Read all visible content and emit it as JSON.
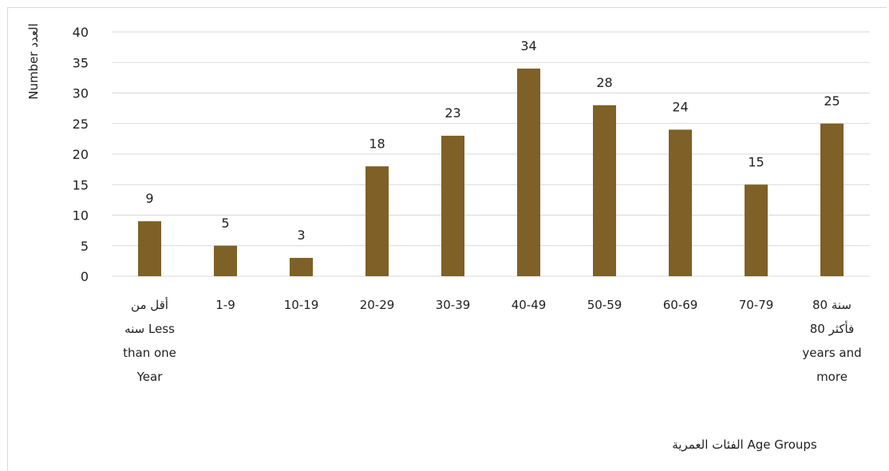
{
  "chart_data": {
    "type": "bar",
    "title": "",
    "ylabel": "Number العدد",
    "xlabel": "الفئات العمرية Age Groups",
    "ylim": [
      0,
      40
    ],
    "yticks": [
      0,
      5,
      10,
      15,
      20,
      25,
      30,
      35,
      40
    ],
    "grid": true,
    "legend": "none",
    "bar_color": "#7f6026",
    "gridline_color": "#d9d9d9",
    "categories": [
      [
        "أقل من",
        "سنه Less",
        "than one",
        "Year"
      ],
      [
        "1-9"
      ],
      [
        "10-19"
      ],
      [
        "20-29"
      ],
      [
        "30-39"
      ],
      [
        "40-49"
      ],
      [
        "50-59"
      ],
      [
        "60-69"
      ],
      [
        "70-79"
      ],
      [
        "80 سنة",
        "فأكثر 80",
        "years and",
        "more"
      ]
    ],
    "values": [
      9,
      5,
      3,
      18,
      23,
      34,
      28,
      24,
      15,
      25
    ]
  }
}
